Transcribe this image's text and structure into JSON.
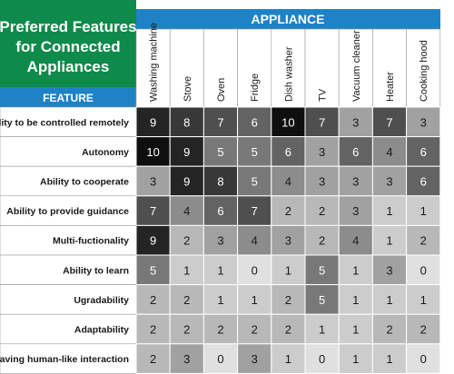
{
  "title": {
    "line1": "Preferred Features",
    "line2": "for Connected",
    "line3": "Appliances"
  },
  "appliance_header": "APPLIANCE",
  "feature_header": "FEATURE",
  "colors": {
    "title_green": "#0e8a4a",
    "header_blue": "#1e82c6",
    "grid_line": "#ffffff",
    "label_bg": "#ffffff"
  },
  "chart_data": {
    "type": "heatmap",
    "x_categories": [
      "Washing machine",
      "Stove",
      "Oven",
      "Fridge",
      "Dish washer",
      "TV",
      "Vacuum cleaner",
      "Heater",
      "Cooking hood"
    ],
    "y_categories": [
      "Ability to be controlled remotely",
      "Autonomy",
      "Ability to cooperate",
      "Ability to provide guidance",
      "Multi-fuctionality",
      "Ability to learn",
      "Ugradability",
      "Adaptability",
      "Having human-like interaction"
    ],
    "values": [
      [
        9,
        8,
        7,
        6,
        10,
        7,
        3,
        7,
        3
      ],
      [
        10,
        9,
        5,
        5,
        6,
        3,
        6,
        4,
        6
      ],
      [
        3,
        9,
        8,
        5,
        4,
        3,
        3,
        3,
        6
      ],
      [
        7,
        4,
        6,
        7,
        2,
        2,
        3,
        1,
        1
      ],
      [
        9,
        2,
        3,
        4,
        3,
        2,
        4,
        1,
        2
      ],
      [
        5,
        1,
        1,
        0,
        1,
        5,
        1,
        3,
        0
      ],
      [
        2,
        2,
        1,
        1,
        2,
        5,
        1,
        1,
        1
      ],
      [
        2,
        2,
        2,
        2,
        2,
        1,
        1,
        2,
        2
      ],
      [
        2,
        3,
        0,
        3,
        1,
        0,
        1,
        1,
        0
      ]
    ],
    "color_scale": "grayscale, darker = higher value",
    "legend": "none",
    "grid": true
  }
}
